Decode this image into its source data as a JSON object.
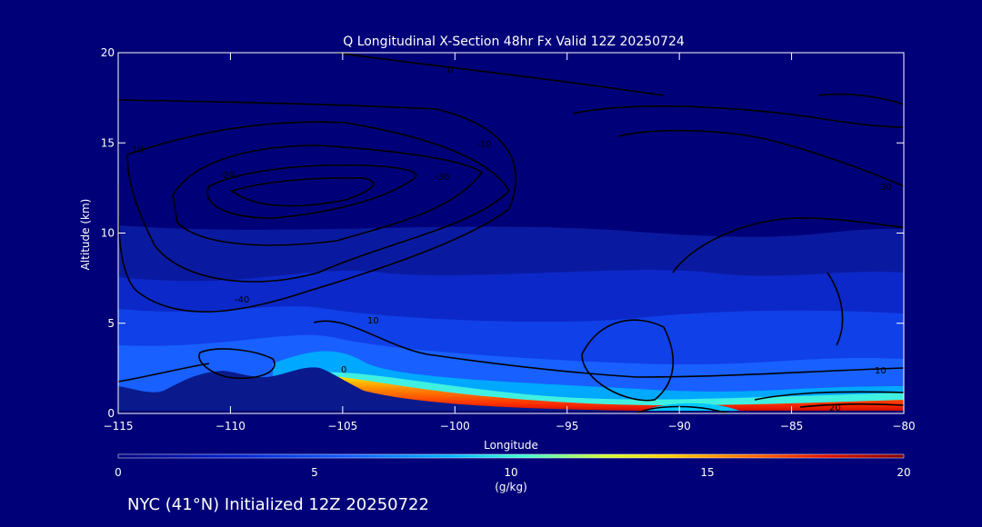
{
  "chart_data": {
    "type": "heatmap",
    "title": "Q Longitudinal X-Section 48hr  Fx Valid 12Z 20250724",
    "xlabel": "Longitude",
    "ylabel": "Altitude (km)",
    "xlim": [
      -115,
      -80
    ],
    "ylim": [
      0,
      20
    ],
    "x_ticks": [
      -115,
      -110,
      -105,
      -100,
      -95,
      -90,
      -85,
      -80
    ],
    "y_ticks": [
      0,
      5,
      10,
      15,
      20
    ],
    "x_tick_labels": [
      "−115",
      "−110",
      "−105",
      "−100",
      "−95",
      "−90",
      "−85",
      "−80"
    ],
    "y_tick_labels": [
      "0",
      "5",
      "10",
      "15",
      "20"
    ],
    "colorbar": {
      "label": "(g/kg)",
      "range": [
        0,
        20
      ],
      "ticks": [
        0,
        5,
        10,
        15,
        20
      ],
      "tick_labels": [
        "0",
        "5",
        "10",
        "15",
        "20"
      ]
    },
    "contour_labels": [
      "0",
      "10",
      "-10",
      "-20",
      "-30",
      "-40",
      "10",
      "0",
      "10",
      "20",
      "30"
    ],
    "colors": {
      "background": "#000078",
      "field_low": "#0a1ea6",
      "contour": "#000000"
    }
  },
  "footer": {
    "station": "NYC (41°N) Initialized 12Z 20250722"
  }
}
